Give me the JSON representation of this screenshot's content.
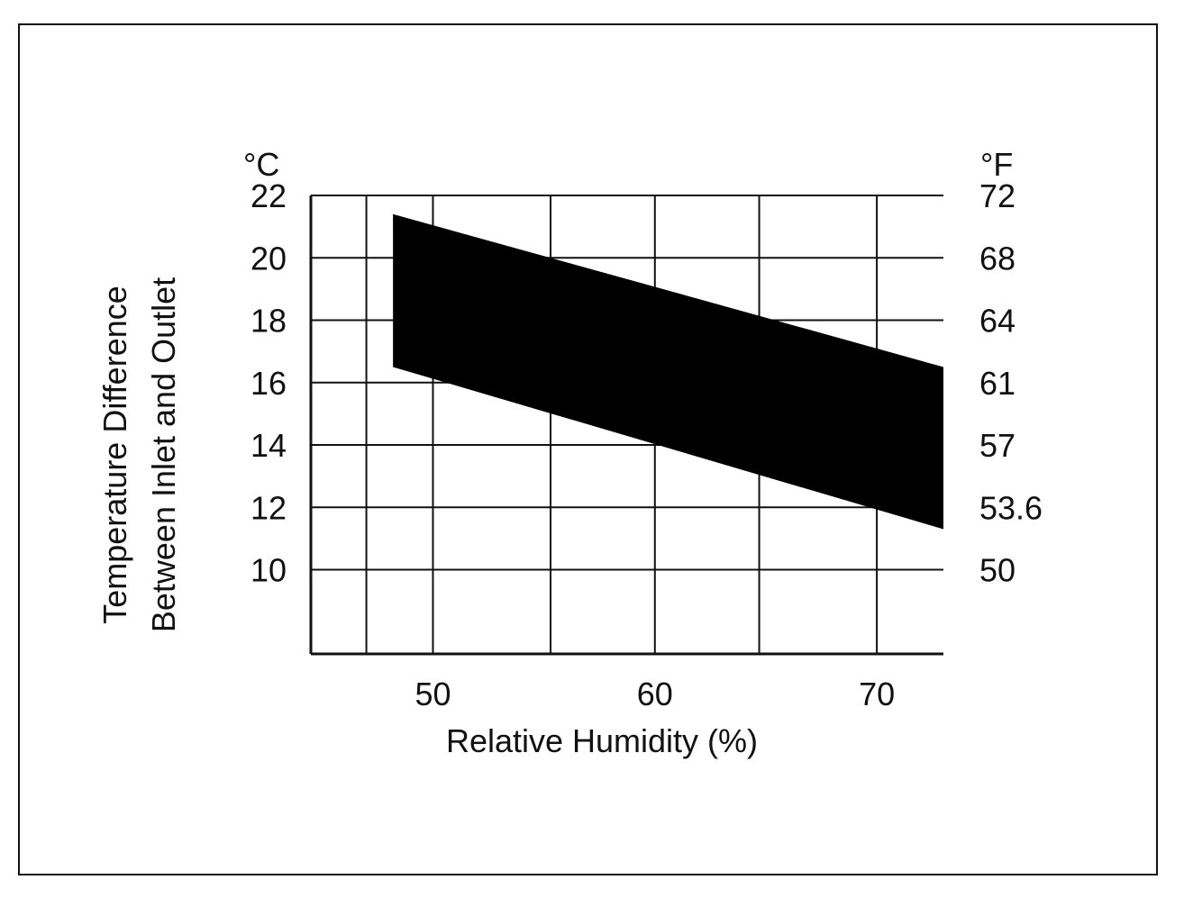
{
  "chart_data": {
    "type": "area",
    "xlabel": "Relative Humidity (%)",
    "ylabel_lines": [
      "Temperature Difference",
      "Between Inlet and Outlet"
    ],
    "left_unit": "°C",
    "right_unit": "°F",
    "xlim": [
      44.5,
      73
    ],
    "ylim": [
      7.3,
      22
    ],
    "x_ticks": [
      50,
      60,
      70
    ],
    "x_tick_labels": [
      "50",
      "60",
      "70"
    ],
    "x_gridlines": [
      47,
      50,
      55.3,
      60,
      64.7,
      70
    ],
    "y_ticks": [
      10,
      12,
      14,
      16,
      18,
      20,
      22
    ],
    "y_tick_labels": [
      "10",
      "12",
      "14",
      "16",
      "18",
      "20",
      "22"
    ],
    "right_tick_labels": [
      "50",
      "53.6",
      "57",
      "61",
      "64",
      "68",
      "72"
    ],
    "series": [
      {
        "upper": {
          "x": [
            48.2,
            73
          ],
          "y": [
            21.4,
            16.5
          ]
        },
        "lower": {
          "x": [
            48.2,
            73
          ],
          "y": [
            16.5,
            11.3
          ]
        }
      }
    ],
    "grid": true,
    "fill_color": "#000000"
  }
}
